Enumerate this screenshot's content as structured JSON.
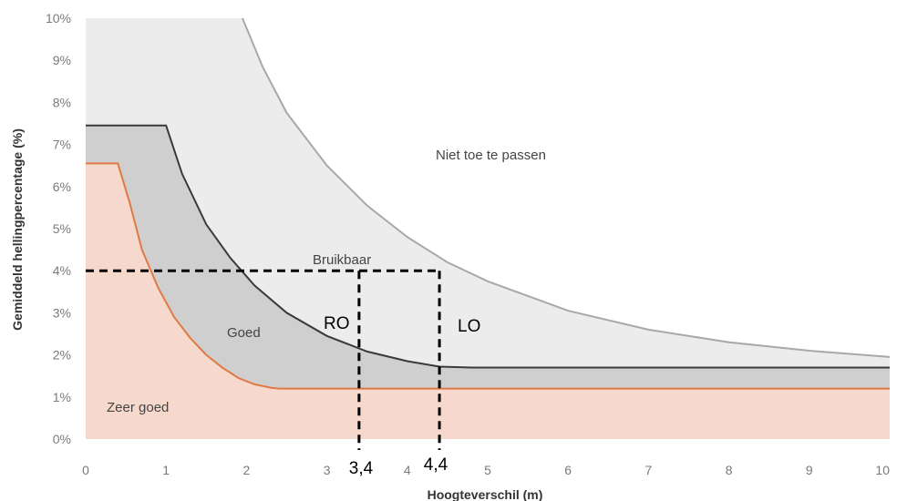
{
  "chart_data": {
    "type": "area",
    "title": "",
    "xlabel": "Hoogteverschil (m)",
    "ylabel": "Gemiddeld hellingpercentage (%)",
    "xlim": [
      0,
      10
    ],
    "ylim": [
      0,
      10
    ],
    "x_ticks": [
      "0",
      "1",
      "2",
      "3",
      "4",
      "5",
      "6",
      "7",
      "8",
      "9",
      "10"
    ],
    "y_ticks": [
      "0%",
      "1%",
      "2%",
      "3%",
      "4%",
      "5%",
      "6%",
      "7%",
      "8%",
      "9%",
      "10%"
    ],
    "grid": false,
    "colors": {
      "zeer_goed_fill": "#f6d9cc",
      "zeer_goed_line": "#e07a45",
      "goed_fill": "#cfcfcf",
      "goed_line": "#3a3a3a",
      "bruikbaar_fill": "#ececec",
      "bruikbaar_line": "#a8a8a8",
      "dashed": "#000000"
    },
    "regions": [
      {
        "label": "Zeer goed"
      },
      {
        "label": "Goed"
      },
      {
        "label": "Bruikbaar"
      },
      {
        "label": "Niet toe te passen"
      }
    ],
    "series": [
      {
        "name": "Zeer goed",
        "x": [
          0,
          0.4,
          0.55,
          0.7,
          0.9,
          1.1,
          1.3,
          1.5,
          1.7,
          1.9,
          2.1,
          2.3,
          2.4,
          10
        ],
        "y": [
          6.55,
          6.55,
          5.6,
          4.5,
          3.6,
          2.9,
          2.4,
          2.0,
          1.7,
          1.45,
          1.3,
          1.22,
          1.2,
          1.2
        ]
      },
      {
        "name": "Goed",
        "x": [
          0,
          1.0,
          1.2,
          1.5,
          1.8,
          2.1,
          2.5,
          3.0,
          3.5,
          4.0,
          4.4,
          4.8,
          10
        ],
        "y": [
          7.45,
          7.45,
          6.3,
          5.1,
          4.3,
          3.65,
          3.0,
          2.45,
          2.08,
          1.85,
          1.72,
          1.7,
          1.7
        ]
      },
      {
        "name": "Bruikbaar",
        "x": [
          1.95,
          2.2,
          2.5,
          3.0,
          3.5,
          4.0,
          4.5,
          5.0,
          6.0,
          7.0,
          8.0,
          9.0,
          10.0
        ],
        "y": [
          10.0,
          8.85,
          7.75,
          6.5,
          5.55,
          4.8,
          4.2,
          3.75,
          3.05,
          2.6,
          2.3,
          2.1,
          1.95
        ]
      }
    ],
    "annotations": [
      {
        "label": "RO",
        "x": 3.4,
        "y": 4.0,
        "x_label": "3,4"
      },
      {
        "label": "LO",
        "x": 4.4,
        "y": 4.0,
        "x_label": "4,4"
      }
    ]
  }
}
